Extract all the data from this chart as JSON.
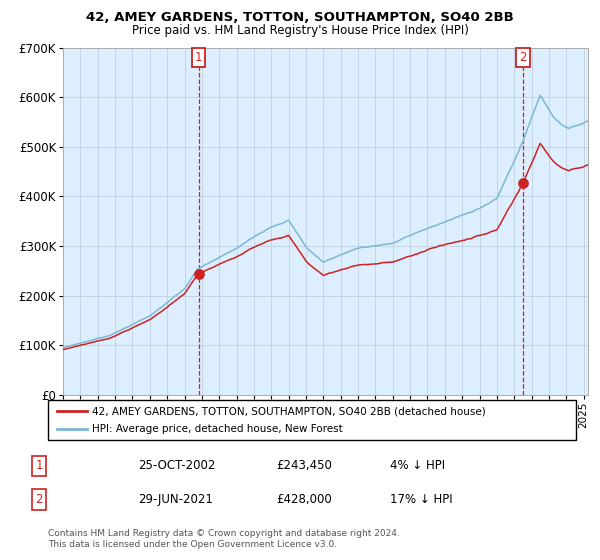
{
  "title": "42, AMEY GARDENS, TOTTON, SOUTHAMPTON, SO40 2BB",
  "subtitle": "Price paid vs. HM Land Registry's House Price Index (HPI)",
  "legend_line1": "42, AMEY GARDENS, TOTTON, SOUTHAMPTON, SO40 2BB (detached house)",
  "legend_line2": "HPI: Average price, detached house, New Forest",
  "sale1_date": "25-OCT-2002",
  "sale1_price": 243450,
  "sale1_label": "1",
  "sale1_pct": "4% ↓ HPI",
  "sale2_date": "29-JUN-2021",
  "sale2_price": 428000,
  "sale2_label": "2",
  "sale2_pct": "17% ↓ HPI",
  "hpi_color": "#7bb8d4",
  "price_color": "#cc2222",
  "dot_color": "#cc2222",
  "vline_color": "#cc2222",
  "bg_color": "#ddeeff",
  "grid_color": "#c0d0e0",
  "label_box_color": "#cc2222",
  "footer": "Contains HM Land Registry data © Crown copyright and database right 2024.\nThis data is licensed under the Open Government Licence v3.0.",
  "ylim": [
    0,
    700000
  ],
  "yticks": [
    0,
    100000,
    200000,
    300000,
    400000,
    500000,
    600000,
    700000
  ],
  "ytick_labels": [
    "£0",
    "£100K",
    "£200K",
    "£300K",
    "£400K",
    "£500K",
    "£600K",
    "£700K"
  ]
}
